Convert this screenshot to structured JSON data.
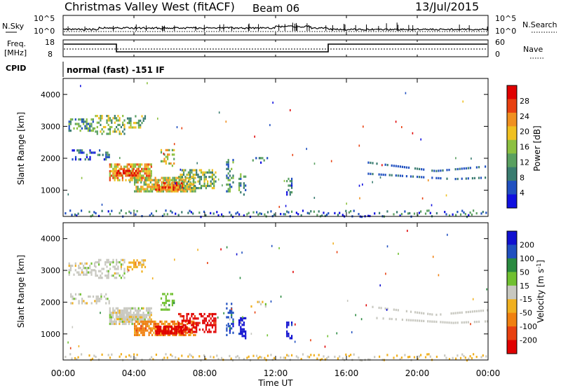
{
  "header": {
    "title": "Christmas Valley West (fitACF)",
    "beam": "Beam 06",
    "date": "13/Jul/2015"
  },
  "nsky_panel": {
    "left_label": "N.Sky",
    "left_ticks": [
      "10^5",
      "10^0"
    ],
    "right_label": "N.Search",
    "right_ticks": [
      "10^5",
      "10^0"
    ]
  },
  "freq_panel": {
    "left_label_1": "Freq.",
    "left_label_2": "[MHz]",
    "left_ticks": [
      "18",
      "8"
    ],
    "right_label": "Nave",
    "right_ticks": [
      "60",
      "0"
    ]
  },
  "cpid_panel": {
    "label": "CPID",
    "text": "normal (fast) -151 IF"
  },
  "colors": {
    "power_scale": [
      "#1010e0",
      "#2050c0",
      "#3a7c70",
      "#5aa060",
      "#8cc040",
      "#f0c020",
      "#f09020",
      "#e84010",
      "#e00000"
    ],
    "velocity_scale": [
      "#1010d0",
      "#2050c0",
      "#2a8a40",
      "#70c030",
      "#c8c8c0",
      "#f0b020",
      "#f08010",
      "#e84010",
      "#e00000"
    ]
  },
  "chart_data": [
    {
      "type": "heatmap",
      "quantity": "Power",
      "ylabel": "Slant Range [km]",
      "yticks": [
        "1000",
        "2000",
        "3000",
        "4000"
      ],
      "ylim": [
        180,
        4500
      ],
      "xlim": [
        "00:00",
        "24:00"
      ],
      "colorbar_label": "Power [dB]",
      "colorbar_ticks": [
        "4",
        "8",
        "12",
        "16",
        "20",
        "24",
        "28"
      ],
      "colorbar_range": [
        0,
        32
      ]
    },
    {
      "type": "heatmap",
      "quantity": "Velocity",
      "ylabel": "Slant Range [km]",
      "yticks": [
        "1000",
        "2000",
        "3000",
        "4000"
      ],
      "ylim": [
        180,
        4500
      ],
      "xlabel": "Time UT",
      "xticks": [
        "00:00",
        "04:00",
        "08:00",
        "12:00",
        "16:00",
        "20:00",
        "00:00"
      ],
      "xlim": [
        "00:00",
        "24:00"
      ],
      "colorbar_label": "Velocity [m s-1]",
      "colorbar_ticks": [
        "200",
        "100",
        "50",
        "15",
        "-15",
        "-50",
        "-100",
        "-200"
      ]
    }
  ]
}
